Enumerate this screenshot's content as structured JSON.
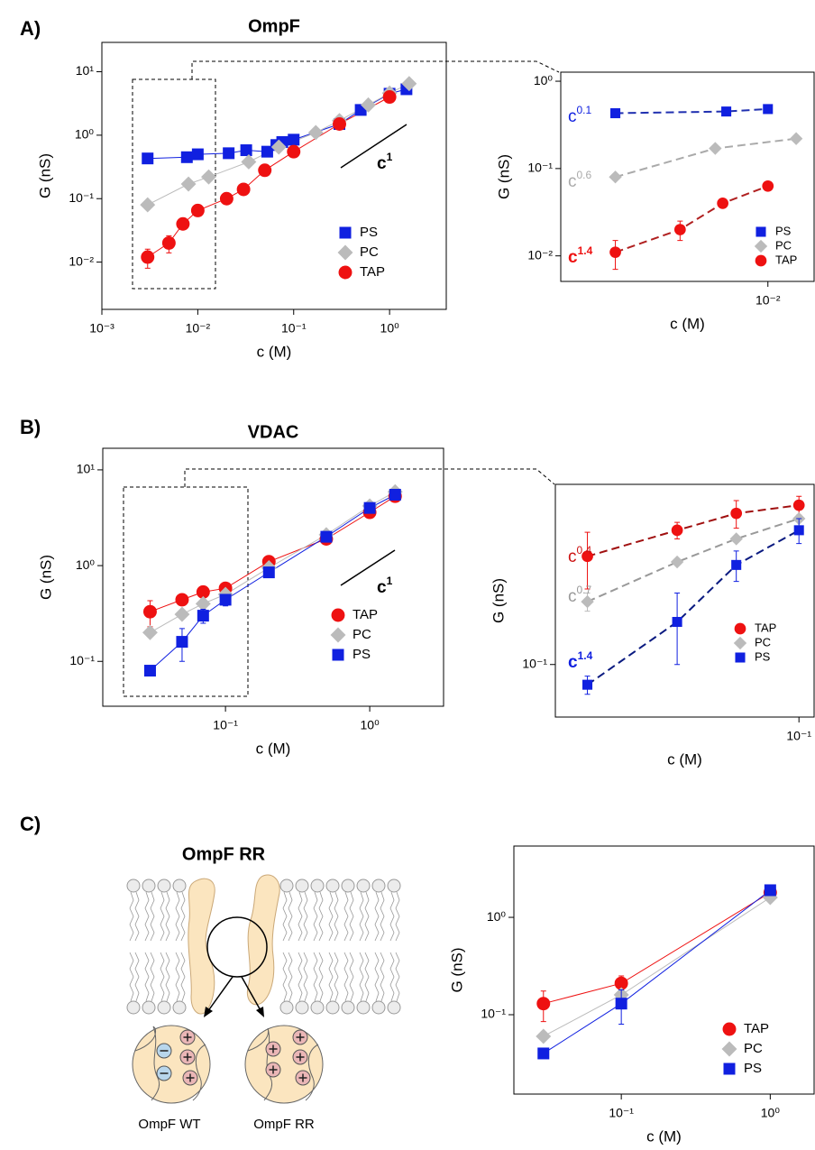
{
  "panel_labels": [
    "A)",
    "B)",
    "C)"
  ],
  "diagram": {
    "title": "OmpF RR",
    "captions": [
      "OmpF WT",
      "OmpF RR"
    ]
  },
  "chart_data": [
    {
      "type": "line",
      "title": "OmpF",
      "x_label": "c (M)",
      "y_label": "G (nS)",
      "xscale": "log",
      "yscale": "log",
      "xlim": [
        0.001,
        3.9
      ],
      "ylim": [
        0.0018,
        29
      ],
      "xticks": [
        {
          "value": 0.001,
          "label": "10⁻³"
        },
        {
          "value": 0.01,
          "label": "10⁻²"
        },
        {
          "value": 0.1,
          "label": "10⁻¹"
        },
        {
          "value": 1,
          "label": "10⁰"
        }
      ],
      "yticks": [
        {
          "value": 0.01,
          "label": "10⁻²"
        },
        {
          "value": 0.1,
          "label": "10⁻¹"
        },
        {
          "value": 1,
          "label": "10⁰"
        },
        {
          "value": 10,
          "label": "10¹"
        }
      ],
      "line_style": "solid",
      "legend": "lower right",
      "series": [
        {
          "name": "PS",
          "color": "#1020e0",
          "line_color": "#1020e0",
          "marker": "square",
          "x": [
            0.003,
            0.0077,
            0.01,
            0.021,
            0.032,
            0.053,
            0.066,
            0.076,
            0.1,
            0.3,
            0.5,
            1,
            1.5
          ],
          "values": [
            0.43,
            0.45,
            0.5,
            0.52,
            0.58,
            0.55,
            0.7,
            0.78,
            0.85,
            1.5,
            2.5,
            4.5,
            5.3
          ]
        },
        {
          "name": "PC",
          "color": "#bbbbbb",
          "line_color": "#bbbbbb",
          "marker": "diamond",
          "x": [
            0.003,
            0.008,
            0.013,
            0.034,
            0.07,
            0.17,
            0.3,
            0.6,
            1,
            1.6
          ],
          "values": [
            0.08,
            0.17,
            0.22,
            0.38,
            0.65,
            1.1,
            1.7,
            3,
            4.6,
            6.5
          ]
        },
        {
          "name": "TAP",
          "color": "#ee1111",
          "line_color": "#ee1111",
          "marker": "circle",
          "x": [
            0.003,
            0.005,
            0.007,
            0.01,
            0.02,
            0.03,
            0.05,
            0.1,
            0.3,
            1
          ],
          "values": [
            0.012,
            0.02,
            0.04,
            0.065,
            0.1,
            0.14,
            0.28,
            0.55,
            1.5,
            4
          ],
          "errors": [
            0.004,
            0.006,
            null,
            null,
            null,
            null,
            0.04,
            null,
            null,
            null
          ]
        }
      ],
      "annotations": [
        {
          "text": "c",
          "exponent": "1",
          "color": "#000000"
        }
      ]
    },
    {
      "type": "line",
      "x_label": "c (M)",
      "y_label": "G (nS)",
      "xscale": "log",
      "yscale": "log",
      "xlim": [
        0.00195,
        0.0144
      ],
      "ylim": [
        0.0051,
        1.27
      ],
      "xticks": [
        {
          "value": 0.01,
          "label": "10⁻²"
        }
      ],
      "yticks": [
        {
          "value": 0.01,
          "label": "10⁻²"
        },
        {
          "value": 0.1,
          "label": "10⁻¹"
        },
        {
          "value": 1,
          "label": "10⁰"
        }
      ],
      "line_style": "dashed",
      "legend": "lower right",
      "series": [
        {
          "name": "PS",
          "color": "#1020e0",
          "line_color": "#2030b0",
          "marker": "square",
          "x": [
            0.003,
            0.0072,
            0.01
          ],
          "values": [
            0.43,
            0.45,
            0.48
          ]
        },
        {
          "name": "PC",
          "color": "#bbbbbb",
          "line_color": "#aaaaaa",
          "marker": "diamond",
          "x": [
            0.003,
            0.0066,
            0.0125
          ],
          "values": [
            0.08,
            0.17,
            0.22
          ]
        },
        {
          "name": "TAP",
          "color": "#ee1111",
          "line_color": "#b02020",
          "marker": "circle",
          "x": [
            0.003,
            0.005,
            0.007,
            0.01
          ],
          "values": [
            0.011,
            0.02,
            0.04,
            0.063
          ],
          "errors": [
            0.004,
            0.005,
            0.003,
            null
          ]
        }
      ],
      "annotations": [
        {
          "text": "c",
          "exponent": "0.1",
          "color": "#1020e0"
        },
        {
          "text": "c",
          "exponent": "0.6",
          "color": "#aaaaaa"
        },
        {
          "text": "c",
          "exponent": "1.4",
          "color": "#ee1111"
        }
      ]
    },
    {
      "type": "line",
      "title": "VDAC",
      "x_label": "c (M)",
      "y_label": "G (nS)",
      "xscale": "log",
      "yscale": "log",
      "xlim": [
        0.0141,
        3.25
      ],
      "ylim": [
        0.034,
        16.8
      ],
      "xticks": [
        {
          "value": 0.1,
          "label": "10⁻¹"
        },
        {
          "value": 1,
          "label": "10⁰"
        }
      ],
      "yticks": [
        {
          "value": 0.1,
          "label": "10⁻¹"
        },
        {
          "value": 1,
          "label": "10⁰"
        },
        {
          "value": 10,
          "label": "10¹"
        }
      ],
      "line_style": "solid",
      "legend": "lower right",
      "series": [
        {
          "name": "TAP",
          "color": "#ee1111",
          "line_color": "#ee1111",
          "marker": "circle",
          "x": [
            0.03,
            0.05,
            0.07,
            0.1,
            0.2,
            0.5,
            1,
            1.5
          ],
          "values": [
            0.33,
            0.44,
            0.53,
            0.58,
            1.1,
            1.9,
            3.6,
            5.3
          ],
          "errors": [
            0.1,
            null,
            null,
            null,
            null,
            null,
            null,
            null
          ]
        },
        {
          "name": "PC",
          "color": "#bbbbbb",
          "line_color": "#bbbbbb",
          "marker": "diamond",
          "x": [
            0.03,
            0.05,
            0.07,
            0.1,
            0.2,
            0.5,
            1,
            1.5
          ],
          "values": [
            0.2,
            0.31,
            0.4,
            0.5,
            0.95,
            2.1,
            4.2,
            5.9
          ]
        },
        {
          "name": "PS",
          "color": "#1020e0",
          "line_color": "#1020e0",
          "marker": "square",
          "x": [
            0.03,
            0.05,
            0.07,
            0.1,
            0.2,
            0.5,
            1,
            1.5
          ],
          "values": [
            0.08,
            0.16,
            0.3,
            0.44,
            0.85,
            2,
            4,
            5.5
          ],
          "errors": [
            null,
            0.06,
            0.05,
            0.06,
            null,
            null,
            null,
            null
          ]
        }
      ],
      "annotations": [
        {
          "text": "c",
          "exponent": "1",
          "color": "#000000"
        }
      ]
    },
    {
      "type": "line",
      "x_label": "c (M)",
      "y_label": "G (nS)",
      "xscale": "log",
      "yscale": "log",
      "xlim": [
        0.025,
        0.109
      ],
      "ylim": [
        0.056,
        0.73
      ],
      "xticks": [
        {
          "value": 0.1,
          "label": "10⁻¹"
        }
      ],
      "yticks": [
        {
          "value": 0.1,
          "label": "10⁻¹"
        }
      ],
      "line_style": "dashed",
      "legend": "lower right",
      "series": [
        {
          "name": "TAP",
          "color": "#ee1111",
          "line_color": "#a01010",
          "marker": "circle",
          "x": [
            0.03,
            0.05,
            0.07,
            0.1
          ],
          "values": [
            0.33,
            0.44,
            0.53,
            0.58
          ],
          "errors": [
            0.1,
            0.04,
            0.08,
            0.06
          ]
        },
        {
          "name": "PC",
          "color": "#bbbbbb",
          "line_color": "#999999",
          "marker": "diamond",
          "x": [
            0.03,
            0.05,
            0.07,
            0.1
          ],
          "values": [
            0.2,
            0.31,
            0.4,
            0.5
          ],
          "errors": [
            0.02,
            null,
            null,
            null
          ]
        },
        {
          "name": "PS",
          "color": "#1020e0",
          "line_color": "#0a1a80",
          "marker": "square",
          "x": [
            0.03,
            0.05,
            0.07,
            0.1
          ],
          "values": [
            0.08,
            0.16,
            0.3,
            0.44
          ],
          "errors": [
            0.008,
            0.06,
            0.05,
            0.06
          ]
        }
      ],
      "annotations": [
        {
          "text": "c",
          "exponent": "0.4",
          "color": "#cc1111"
        },
        {
          "text": "c",
          "exponent": "0.7",
          "color": "#999999"
        },
        {
          "text": "c",
          "exponent": "1.4",
          "color": "#1020e0"
        }
      ]
    },
    {
      "type": "line",
      "x_label": "c (M)",
      "y_label": "G (nS)",
      "xscale": "log",
      "yscale": "log",
      "xlim": [
        0.019,
        1.97
      ],
      "ylim": [
        0.0153,
        5.4
      ],
      "xticks": [
        {
          "value": 0.1,
          "label": "10⁻¹"
        },
        {
          "value": 1,
          "label": "10⁰"
        }
      ],
      "yticks": [
        {
          "value": 0.1,
          "label": "10⁻¹"
        },
        {
          "value": 1,
          "label": "10⁰"
        }
      ],
      "line_style": "solid",
      "legend": "lower right",
      "series": [
        {
          "name": "TAP",
          "color": "#ee1111",
          "line_color": "#ee1111",
          "marker": "circle",
          "x": [
            0.03,
            0.1,
            1
          ],
          "values": [
            0.13,
            0.21,
            1.8
          ],
          "errors": [
            0.045,
            0.04,
            null
          ]
        },
        {
          "name": "PC",
          "color": "#bbbbbb",
          "line_color": "#bbbbbb",
          "marker": "diamond",
          "x": [
            0.03,
            0.1,
            1
          ],
          "values": [
            0.06,
            0.16,
            1.6
          ]
        },
        {
          "name": "PS",
          "color": "#1020e0",
          "line_color": "#1020e0",
          "marker": "square",
          "x": [
            0.03,
            0.1,
            1
          ],
          "values": [
            0.04,
            0.13,
            1.9
          ],
          "errors": [
            null,
            0.05,
            null
          ]
        }
      ]
    }
  ]
}
